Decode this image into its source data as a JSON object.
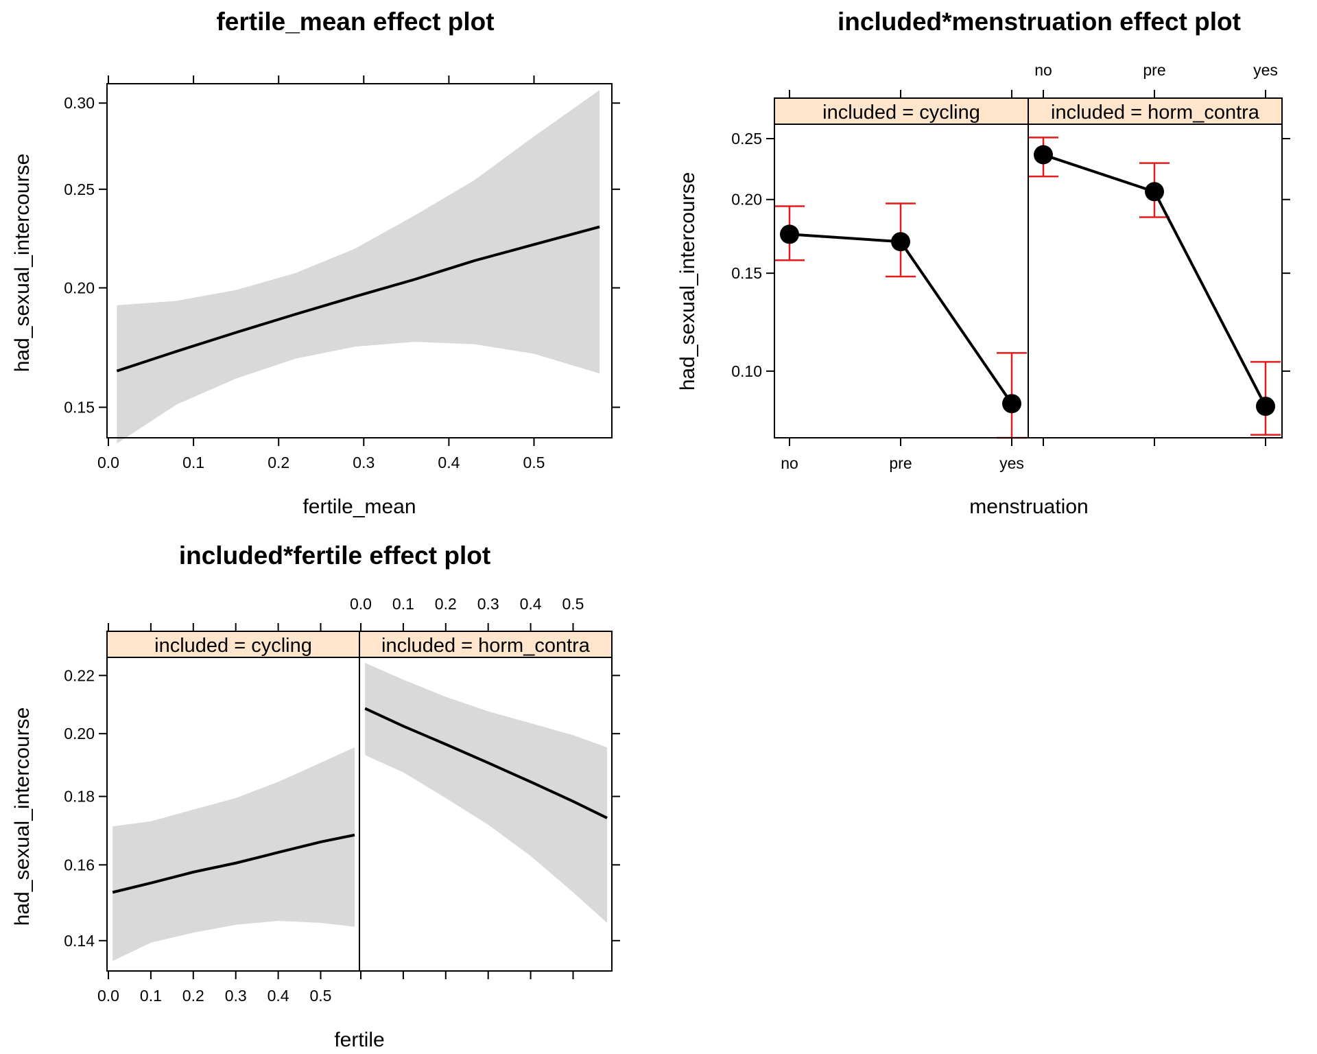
{
  "colors": {
    "band": "#d9d9d9",
    "line": "#000000",
    "errorbar": "#e41a1c",
    "strip": "#ffe5cc",
    "frame": "#000000"
  },
  "chart_data": [
    {
      "type": "line",
      "title": "fertile_mean effect plot",
      "xlabel": "fertile_mean",
      "ylabel": "had_sexual_intercourse",
      "xlim": [
        0.0,
        0.585
      ],
      "ylim": [
        0.139,
        0.312
      ],
      "y_scale": "logit",
      "x_ticks": [
        "0.0",
        "0.1",
        "0.2",
        "0.3",
        "0.4",
        "0.5"
      ],
      "y_ticks": [
        "0.15",
        "0.20",
        "0.25",
        "0.30"
      ],
      "x": [
        0.01,
        0.08,
        0.15,
        0.22,
        0.29,
        0.36,
        0.43,
        0.5,
        0.577
      ],
      "fit": [
        0.164,
        0.172,
        0.18,
        0.188,
        0.196,
        0.204,
        0.213,
        0.221,
        0.23
      ],
      "lower": [
        0.137,
        0.151,
        0.161,
        0.169,
        0.174,
        0.176,
        0.175,
        0.171,
        0.163
      ],
      "upper": [
        0.192,
        0.194,
        0.199,
        0.207,
        0.219,
        0.236,
        0.255,
        0.28,
        0.308
      ],
      "grid": false
    },
    {
      "type": "line",
      "title": "included*menstruation effect plot",
      "xlabel": "menstruation",
      "ylabel": "had_sexual_intercourse",
      "categories": [
        "no",
        "pre",
        "yes"
      ],
      "ylim": [
        0.075,
        0.263
      ],
      "y_scale": "logit",
      "y_ticks": [
        "0.10",
        "0.15",
        "0.20",
        "0.25"
      ],
      "panels": [
        {
          "strip": "included = cycling",
          "fit": [
            0.175,
            0.17,
            0.087
          ],
          "lower": [
            0.158,
            0.148,
            0.075
          ],
          "upper": [
            0.195,
            0.197,
            0.108
          ]
        },
        {
          "strip": "included = horm_contra",
          "fit": [
            0.236,
            0.206,
            0.086
          ],
          "lower": [
            0.218,
            0.187,
            0.076
          ],
          "upper": [
            0.251,
            0.229,
            0.104
          ]
        }
      ],
      "grid": false
    },
    {
      "type": "line",
      "title": "included*fertile effect plot",
      "xlabel": "fertile",
      "ylabel": "had_sexual_intercourse",
      "xlim": [
        0.0,
        0.59
      ],
      "ylim": [
        0.1326,
        0.2265
      ],
      "y_scale": "logit",
      "x_ticks": [
        "0.0",
        "0.1",
        "0.2",
        "0.3",
        "0.4",
        "0.5"
      ],
      "y_ticks": [
        "0.14",
        "0.16",
        "0.18",
        "0.20",
        "0.22"
      ],
      "panels": [
        {
          "strip": "included = cycling",
          "x": [
            0.01,
            0.1,
            0.2,
            0.3,
            0.4,
            0.5,
            0.58
          ],
          "fit": [
            0.1525,
            0.155,
            0.158,
            0.1605,
            0.1635,
            0.1665,
            0.1685
          ],
          "lower": [
            0.135,
            0.1395,
            0.142,
            0.144,
            0.145,
            0.1445,
            0.1435
          ],
          "upper": [
            0.171,
            0.1725,
            0.176,
            0.1795,
            0.1845,
            0.1905,
            0.1955
          ]
        },
        {
          "strip": "included = horm_contra",
          "x": [
            0.01,
            0.1,
            0.2,
            0.3,
            0.4,
            0.5,
            0.58
          ],
          "fit": [
            0.2085,
            0.2025,
            0.1965,
            0.1905,
            0.1845,
            0.1785,
            0.1735
          ],
          "lower": [
            0.193,
            0.1875,
            0.1795,
            0.1715,
            0.1625,
            0.1525,
            0.1445
          ],
          "upper": [
            0.2245,
            0.2185,
            0.2125,
            0.2075,
            0.2035,
            0.1995,
            0.1955
          ]
        }
      ],
      "grid": false
    }
  ]
}
